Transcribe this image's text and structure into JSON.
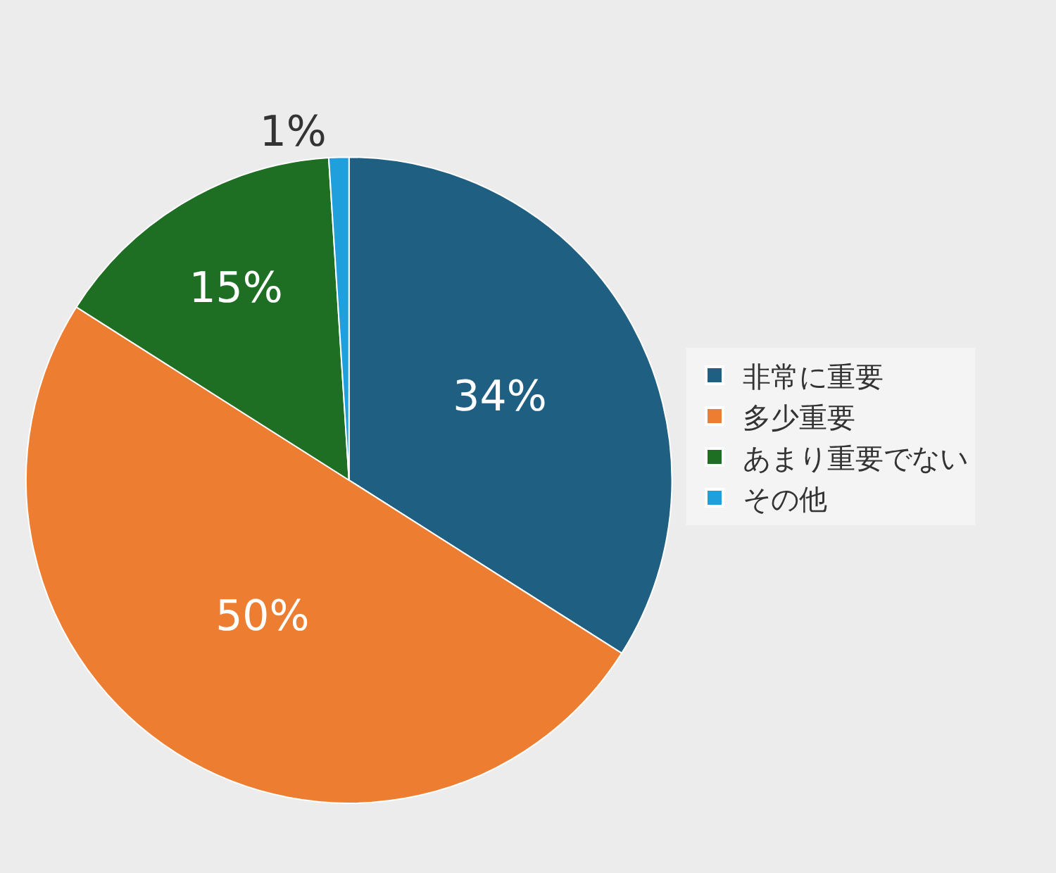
{
  "chart_data": {
    "type": "pie",
    "categories": [
      "非常に重要",
      "多少重要",
      "あまり重要でない",
      "その他"
    ],
    "values": [
      34,
      50,
      15,
      1
    ],
    "colors": [
      "#1f5f82",
      "#ed7d31",
      "#1e6e23",
      "#1fa0dc"
    ],
    "value_labels": [
      "34%",
      "50%",
      "15%",
      "1%"
    ],
    "legend": "right"
  }
}
